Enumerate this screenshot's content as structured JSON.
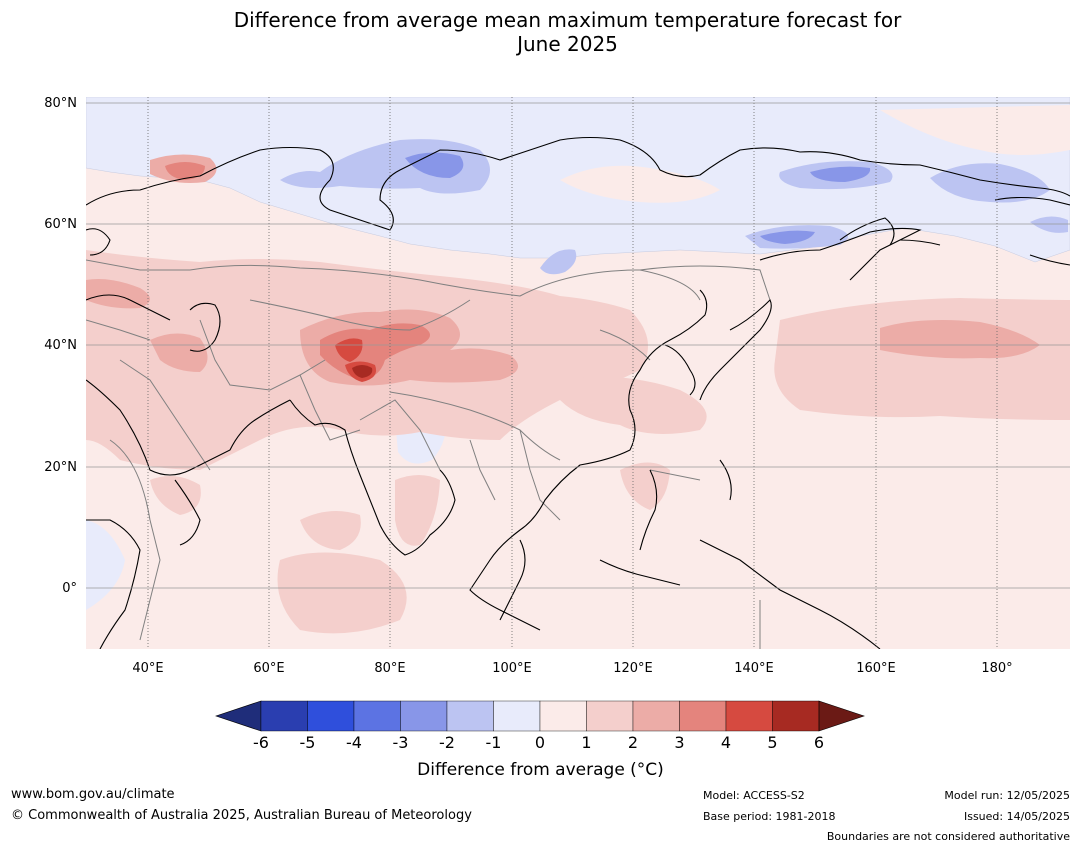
{
  "title": {
    "line1": "Difference from average mean maximum temperature forecast for",
    "line2": "June 2025"
  },
  "map": {
    "lat_labels": [
      "80°N",
      "60°N",
      "40°N",
      "20°N",
      "0°"
    ],
    "lon_labels": [
      "40°E",
      "60°E",
      "80°E",
      "100°E",
      "120°E",
      "140°E",
      "160°E",
      "180°"
    ],
    "colors": {
      "land_border": "#000000",
      "country_border": "#808080",
      "grid": "#666666",
      "background_anomaly_0_1": "#fbebe9"
    }
  },
  "colorbar": {
    "ticks": [
      "-6",
      "-5",
      "-4",
      "-3",
      "-2",
      "-1",
      "0",
      "1",
      "2",
      "3",
      "4",
      "5",
      "6"
    ],
    "colors": [
      "#1f2d7a",
      "#2a3eb0",
      "#2f4fdc",
      "#5c73e3",
      "#8896e8",
      "#bcc4f2",
      "#e8ebfb",
      "#fbebe9",
      "#f4cfcc",
      "#ecaca7",
      "#e4847d",
      "#d64a40",
      "#a72a22",
      "#6b1a15"
    ],
    "title": "Difference from average ($^\\circ$C)",
    "title_display": "Difference from average (°C)"
  },
  "footer": {
    "url": "www.bom.gov.au/climate",
    "copyright": "© Commonwealth of Australia 2025, Australian Bureau of Meteorology",
    "model": "Model: ACCESS-S2",
    "base_period": "Base period: 1981-2018",
    "model_run": "Model run: 12/05/2025",
    "issued": "Issued: 14/05/2025",
    "disclaimer": "Boundaries are not considered authoritative"
  }
}
